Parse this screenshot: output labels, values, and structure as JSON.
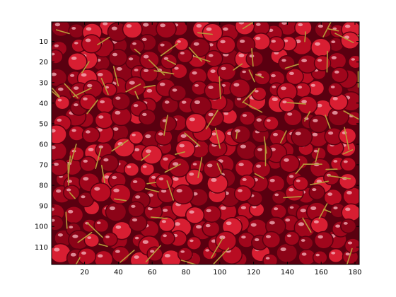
{
  "figure": {
    "image_subject": "cherries",
    "colors": {
      "background": "#ffffff",
      "axes_frame": "#000000",
      "cherry_dark": "#5a0010",
      "cherry_mid": "#a0061c",
      "cherry_bright": "#d81e32",
      "highlight": "#f7b6bf",
      "stem": "#b89a3a"
    }
  },
  "chart_data": {
    "type": "heatmap",
    "title": "",
    "xlabel": "",
    "ylabel": "",
    "xlim": [
      0.5,
      182.5
    ],
    "ylim": [
      118.5,
      0.5
    ],
    "y_direction": "reversed",
    "grid": false,
    "x_ticks": [
      20,
      40,
      60,
      80,
      100,
      120,
      140,
      160,
      180
    ],
    "x_tick_labels": [
      "20",
      "40",
      "60",
      "80",
      "100",
      "120",
      "140",
      "160",
      "180"
    ],
    "y_ticks": [
      10,
      20,
      30,
      40,
      50,
      60,
      70,
      80,
      90,
      100,
      110
    ],
    "y_tick_labels": [
      "10",
      "20",
      "30",
      "40",
      "50",
      "60",
      "70",
      "80",
      "90",
      "100",
      "110"
    ]
  }
}
